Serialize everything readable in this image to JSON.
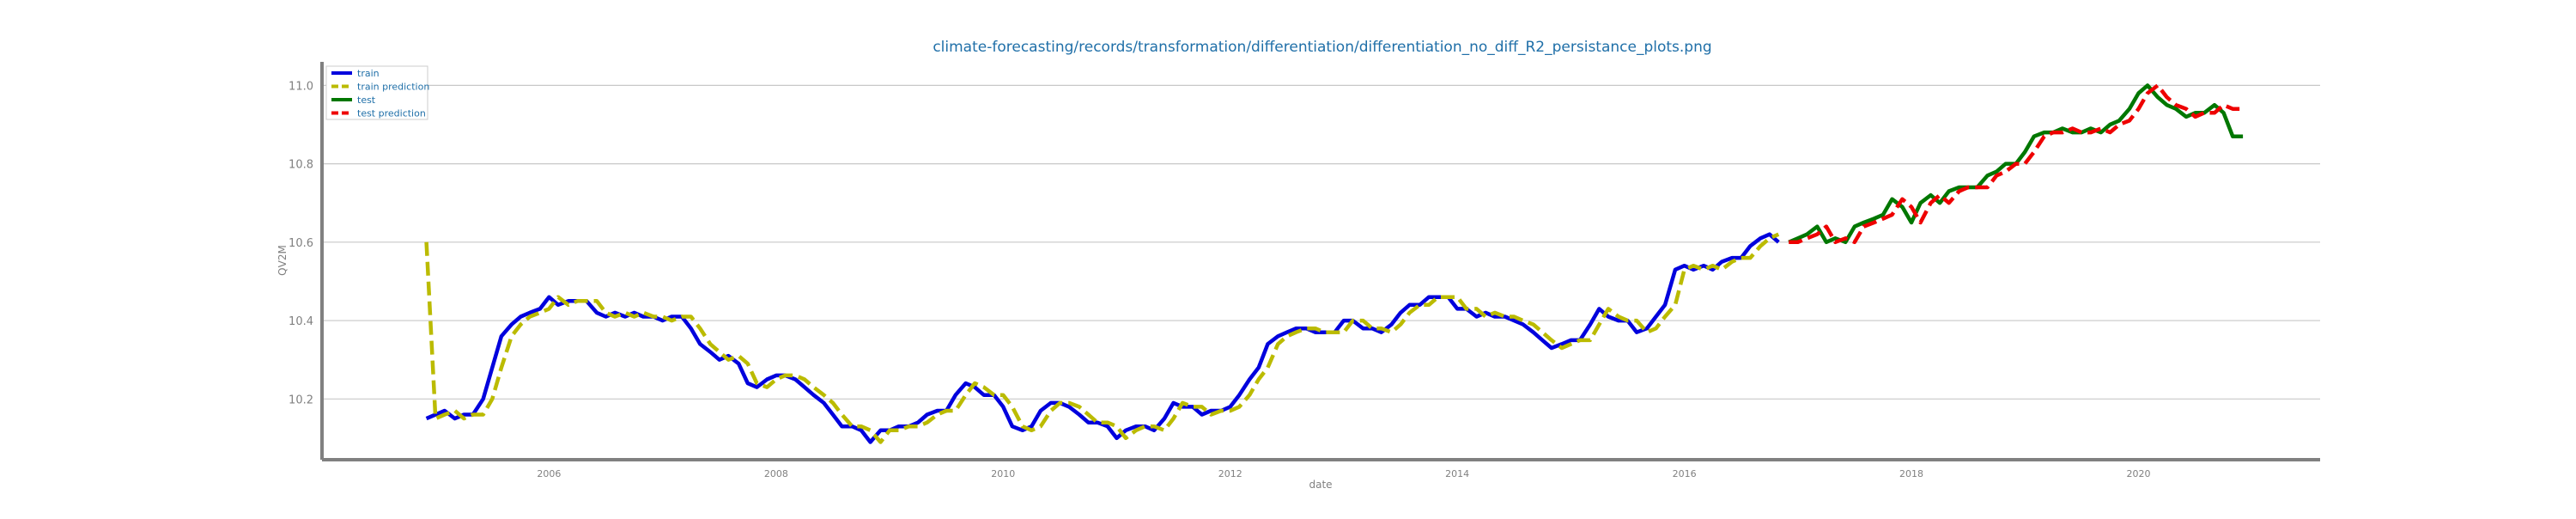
{
  "chart_data": {
    "type": "line",
    "title": "climate-forecasting/records/transformation/differentiation/differentiation_no_diff_R2_persistance_plots.png",
    "xlabel": "date",
    "ylabel": "QV2M",
    "xlim": [
      2004.0,
      2021.6
    ],
    "ylim": [
      10.045,
      11.06
    ],
    "x_ticks": [
      2006,
      2008,
      2010,
      2012,
      2014,
      2016,
      2018,
      2020
    ],
    "x_tick_labels": [
      "2006",
      "2008",
      "2010",
      "2012",
      "2014",
      "2016",
      "2018",
      "2020"
    ],
    "y_ticks": [
      10.2,
      10.4,
      10.6,
      10.8,
      11.0
    ],
    "y_tick_labels": [
      "10.2",
      "10.4",
      "10.6",
      "10.8",
      "11.0"
    ],
    "grid": "horizontal",
    "legend_position": "top-left",
    "series": [
      {
        "name": "train",
        "color": "#0000dd",
        "dash": "solid",
        "x": [
          2004.92,
          2005.0,
          2005.08,
          2005.17,
          2005.25,
          2005.33,
          2005.42,
          2005.5,
          2005.58,
          2005.67,
          2005.75,
          2005.83,
          2005.92,
          2006.0,
          2006.08,
          2006.17,
          2006.25,
          2006.33,
          2006.42,
          2006.5,
          2006.58,
          2006.67,
          2006.75,
          2006.83,
          2006.92,
          2007.0,
          2007.08,
          2007.17,
          2007.25,
          2007.33,
          2007.42,
          2007.5,
          2007.58,
          2007.67,
          2007.75,
          2007.83,
          2007.92,
          2008.0,
          2008.08,
          2008.17,
          2008.25,
          2008.33,
          2008.42,
          2008.5,
          2008.58,
          2008.67,
          2008.75,
          2008.83,
          2008.92,
          2009.0,
          2009.08,
          2009.17,
          2009.25,
          2009.33,
          2009.42,
          2009.5,
          2009.58,
          2009.67,
          2009.75,
          2009.83,
          2009.92,
          2010.0,
          2010.08,
          2010.17,
          2010.25,
          2010.33,
          2010.42,
          2010.5,
          2010.58,
          2010.67,
          2010.75,
          2010.83,
          2010.92,
          2011.0,
          2011.08,
          2011.17,
          2011.25,
          2011.33,
          2011.42,
          2011.5,
          2011.58,
          2011.67,
          2011.75,
          2011.83,
          2011.92,
          2012.0,
          2012.08,
          2012.17,
          2012.25,
          2012.33,
          2012.42,
          2012.5,
          2012.58,
          2012.67,
          2012.75,
          2012.83,
          2012.92,
          2013.0,
          2013.08,
          2013.17,
          2013.25,
          2013.33,
          2013.42,
          2013.5,
          2013.58,
          2013.67,
          2013.75,
          2013.83,
          2013.92,
          2014.0,
          2014.08,
          2014.17,
          2014.25,
          2014.33,
          2014.42,
          2014.5,
          2014.58,
          2014.67,
          2014.75,
          2014.83,
          2014.92,
          2015.0,
          2015.08,
          2015.17,
          2015.25,
          2015.33,
          2015.42,
          2015.5,
          2015.58,
          2015.67,
          2015.75,
          2015.83,
          2015.92,
          2016.0,
          2016.08,
          2016.17,
          2016.25,
          2016.33,
          2016.42,
          2016.5,
          2016.58,
          2016.67,
          2016.75,
          2016.83
        ],
        "values": [
          10.15,
          10.16,
          10.17,
          10.15,
          10.16,
          10.16,
          10.2,
          10.28,
          10.36,
          10.39,
          10.41,
          10.42,
          10.43,
          10.46,
          10.44,
          10.45,
          10.45,
          10.45,
          10.42,
          10.41,
          10.42,
          10.41,
          10.42,
          10.41,
          10.41,
          10.4,
          10.41,
          10.41,
          10.38,
          10.34,
          10.32,
          10.3,
          10.31,
          10.29,
          10.24,
          10.23,
          10.25,
          10.26,
          10.26,
          10.25,
          10.23,
          10.21,
          10.19,
          10.16,
          10.13,
          10.13,
          10.12,
          10.09,
          10.12,
          10.12,
          10.13,
          10.13,
          10.14,
          10.16,
          10.17,
          10.17,
          10.21,
          10.24,
          10.23,
          10.21,
          10.21,
          10.18,
          10.13,
          10.12,
          10.13,
          10.17,
          10.19,
          10.19,
          10.18,
          10.16,
          10.14,
          10.14,
          10.13,
          10.1,
          10.12,
          10.13,
          10.13,
          10.12,
          10.15,
          10.19,
          10.18,
          10.18,
          10.16,
          10.17,
          10.17,
          10.18,
          10.21,
          10.25,
          10.28,
          10.34,
          10.36,
          10.37,
          10.38,
          10.38,
          10.37,
          10.37,
          10.37,
          10.4,
          10.4,
          10.38,
          10.38,
          10.37,
          10.39,
          10.42,
          10.44,
          10.44,
          10.46,
          10.46,
          10.46,
          10.43,
          10.43,
          10.41,
          10.42,
          10.41,
          10.41,
          10.4,
          10.39,
          10.37,
          10.35,
          10.33,
          10.34,
          10.35,
          10.35,
          10.39,
          10.43,
          10.41,
          10.4,
          10.4,
          10.37,
          10.38,
          10.41,
          10.44,
          10.53,
          10.54,
          10.53,
          10.54,
          10.53,
          10.55,
          10.56,
          10.56,
          10.59,
          10.61,
          10.62,
          10.6
        ]
      },
      {
        "name": "train prediction",
        "color": "#bbbb00",
        "dash": "dashed",
        "x": [
          2004.92,
          2005.0,
          2005.08,
          2005.17,
          2005.25,
          2005.33,
          2005.42,
          2005.5,
          2005.58,
          2005.67,
          2005.75,
          2005.83,
          2005.92,
          2006.0,
          2006.08,
          2006.17,
          2006.25,
          2006.33,
          2006.42,
          2006.5,
          2006.58,
          2006.67,
          2006.75,
          2006.83,
          2006.92,
          2007.0,
          2007.08,
          2007.17,
          2007.25,
          2007.33,
          2007.42,
          2007.5,
          2007.58,
          2007.67,
          2007.75,
          2007.83,
          2007.92,
          2008.0,
          2008.08,
          2008.17,
          2008.25,
          2008.33,
          2008.42,
          2008.5,
          2008.58,
          2008.67,
          2008.75,
          2008.83,
          2008.92,
          2009.0,
          2009.08,
          2009.17,
          2009.25,
          2009.33,
          2009.42,
          2009.5,
          2009.58,
          2009.67,
          2009.75,
          2009.83,
          2009.92,
          2010.0,
          2010.08,
          2010.17,
          2010.25,
          2010.33,
          2010.42,
          2010.5,
          2010.58,
          2010.67,
          2010.75,
          2010.83,
          2010.92,
          2011.0,
          2011.08,
          2011.17,
          2011.25,
          2011.33,
          2011.42,
          2011.5,
          2011.58,
          2011.67,
          2011.75,
          2011.83,
          2011.92,
          2012.0,
          2012.08,
          2012.17,
          2012.25,
          2012.33,
          2012.42,
          2012.5,
          2012.58,
          2012.67,
          2012.75,
          2012.83,
          2012.92,
          2013.0,
          2013.08,
          2013.17,
          2013.25,
          2013.33,
          2013.42,
          2013.5,
          2013.58,
          2013.67,
          2013.75,
          2013.83,
          2013.92,
          2014.0,
          2014.08,
          2014.17,
          2014.25,
          2014.33,
          2014.42,
          2014.5,
          2014.58,
          2014.67,
          2014.75,
          2014.83,
          2014.92,
          2015.0,
          2015.08,
          2015.17,
          2015.25,
          2015.33,
          2015.42,
          2015.5,
          2015.58,
          2015.67,
          2015.75,
          2015.83,
          2015.92,
          2016.0,
          2016.08,
          2016.17,
          2016.25,
          2016.33,
          2016.42,
          2016.5,
          2016.58,
          2016.67,
          2016.75,
          2016.83
        ],
        "values": [
          10.6,
          10.15,
          10.16,
          10.17,
          10.15,
          10.16,
          10.16,
          10.2,
          10.28,
          10.36,
          10.39,
          10.41,
          10.42,
          10.43,
          10.46,
          10.44,
          10.45,
          10.45,
          10.45,
          10.42,
          10.41,
          10.42,
          10.41,
          10.42,
          10.41,
          10.41,
          10.4,
          10.41,
          10.41,
          10.38,
          10.34,
          10.32,
          10.3,
          10.31,
          10.29,
          10.24,
          10.23,
          10.25,
          10.26,
          10.26,
          10.25,
          10.23,
          10.21,
          10.19,
          10.16,
          10.13,
          10.13,
          10.12,
          10.09,
          10.12,
          10.12,
          10.13,
          10.13,
          10.14,
          10.16,
          10.17,
          10.17,
          10.21,
          10.24,
          10.23,
          10.21,
          10.21,
          10.18,
          10.13,
          10.12,
          10.13,
          10.17,
          10.19,
          10.19,
          10.18,
          10.16,
          10.14,
          10.14,
          10.13,
          10.1,
          10.12,
          10.13,
          10.13,
          10.12,
          10.15,
          10.19,
          10.18,
          10.18,
          10.16,
          10.17,
          10.17,
          10.18,
          10.21,
          10.25,
          10.28,
          10.34,
          10.36,
          10.37,
          10.38,
          10.38,
          10.37,
          10.37,
          10.37,
          10.4,
          10.4,
          10.38,
          10.38,
          10.37,
          10.39,
          10.42,
          10.44,
          10.44,
          10.46,
          10.46,
          10.46,
          10.43,
          10.43,
          10.41,
          10.42,
          10.41,
          10.41,
          10.4,
          10.39,
          10.37,
          10.35,
          10.33,
          10.34,
          10.35,
          10.35,
          10.39,
          10.43,
          10.41,
          10.4,
          10.4,
          10.37,
          10.38,
          10.41,
          10.44,
          10.53,
          10.54,
          10.53,
          10.54,
          10.53,
          10.55,
          10.56,
          10.56,
          10.59,
          10.61,
          10.62
        ]
      },
      {
        "name": "test",
        "color": "#007700",
        "dash": "solid",
        "x": [
          2016.92,
          2017.0,
          2017.08,
          2017.17,
          2017.25,
          2017.33,
          2017.42,
          2017.5,
          2017.58,
          2017.67,
          2017.75,
          2017.83,
          2017.92,
          2018.0,
          2018.08,
          2018.17,
          2018.25,
          2018.33,
          2018.42,
          2018.5,
          2018.58,
          2018.67,
          2018.75,
          2018.83,
          2018.92,
          2019.0,
          2019.08,
          2019.17,
          2019.25,
          2019.33,
          2019.42,
          2019.5,
          2019.58,
          2019.67,
          2019.75,
          2019.83,
          2019.92,
          2020.0,
          2020.08,
          2020.17,
          2020.25,
          2020.33,
          2020.42,
          2020.5,
          2020.58,
          2020.67,
          2020.75,
          2020.83,
          2020.92
        ],
        "values": [
          10.6,
          10.61,
          10.62,
          10.64,
          10.6,
          10.61,
          10.6,
          10.64,
          10.65,
          10.66,
          10.67,
          10.71,
          10.69,
          10.65,
          10.7,
          10.72,
          10.7,
          10.73,
          10.74,
          10.74,
          10.74,
          10.77,
          10.78,
          10.8,
          10.8,
          10.83,
          10.87,
          10.88,
          10.88,
          10.89,
          10.88,
          10.88,
          10.89,
          10.88,
          10.9,
          10.91,
          10.94,
          10.98,
          11.0,
          10.97,
          10.95,
          10.94,
          10.92,
          10.93,
          10.93,
          10.95,
          10.93,
          10.87,
          10.87
        ]
      },
      {
        "name": "test prediction",
        "color": "#ee0000",
        "dash": "dashed",
        "x": [
          2016.92,
          2017.0,
          2017.08,
          2017.17,
          2017.25,
          2017.33,
          2017.42,
          2017.5,
          2017.58,
          2017.67,
          2017.75,
          2017.83,
          2017.92,
          2018.0,
          2018.08,
          2018.17,
          2018.25,
          2018.33,
          2018.42,
          2018.5,
          2018.58,
          2018.67,
          2018.75,
          2018.83,
          2018.92,
          2019.0,
          2019.08,
          2019.17,
          2019.25,
          2019.33,
          2019.42,
          2019.5,
          2019.58,
          2019.67,
          2019.75,
          2019.83,
          2019.92,
          2020.0,
          2020.08,
          2020.17,
          2020.25,
          2020.33,
          2020.42,
          2020.5,
          2020.58,
          2020.67,
          2020.75,
          2020.83,
          2020.92
        ],
        "values": [
          10.6,
          10.6,
          10.61,
          10.62,
          10.64,
          10.6,
          10.61,
          10.6,
          10.64,
          10.65,
          10.66,
          10.67,
          10.71,
          10.69,
          10.65,
          10.7,
          10.72,
          10.7,
          10.73,
          10.74,
          10.74,
          10.74,
          10.77,
          10.78,
          10.8,
          10.8,
          10.83,
          10.87,
          10.88,
          10.88,
          10.89,
          10.88,
          10.88,
          10.89,
          10.88,
          10.9,
          10.91,
          10.94,
          10.98,
          11.0,
          10.97,
          10.95,
          10.94,
          10.92,
          10.93,
          10.93,
          10.95,
          10.94,
          10.94
        ]
      }
    ]
  }
}
